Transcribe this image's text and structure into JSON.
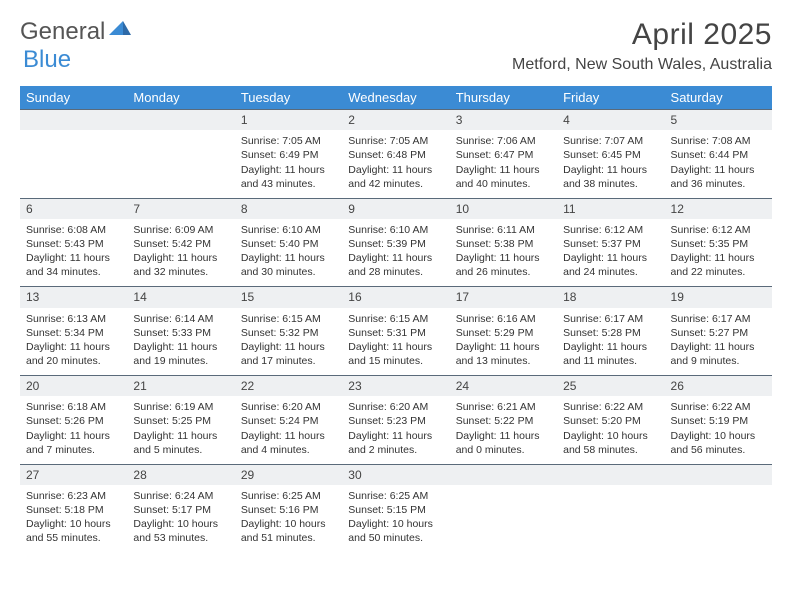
{
  "logo": {
    "word1": "General",
    "word2": "Blue"
  },
  "title": "April 2025",
  "location": "Metford, New South Wales, Australia",
  "dow": [
    "Sunday",
    "Monday",
    "Tuesday",
    "Wednesday",
    "Thursday",
    "Friday",
    "Saturday"
  ],
  "colors": {
    "header_bg": "#3b8bd4",
    "header_text": "#ffffff",
    "daynum_bg": "#eef0f2",
    "daynum_border": "#5a6a7a",
    "text": "#333333",
    "page_bg": "#ffffff"
  },
  "typography": {
    "title_fontsize": 30,
    "location_fontsize": 16,
    "dow_fontsize": 13,
    "daynum_fontsize": 12,
    "cell_fontsize": 10.5
  },
  "layout": {
    "columns": 7,
    "rows": 5,
    "col_width_pct": 14.28
  },
  "first_weekday_index": 2,
  "days": [
    {
      "n": 1,
      "sunrise": "7:05 AM",
      "sunset": "6:49 PM",
      "daylight": "11 hours and 43 minutes."
    },
    {
      "n": 2,
      "sunrise": "7:05 AM",
      "sunset": "6:48 PM",
      "daylight": "11 hours and 42 minutes."
    },
    {
      "n": 3,
      "sunrise": "7:06 AM",
      "sunset": "6:47 PM",
      "daylight": "11 hours and 40 minutes."
    },
    {
      "n": 4,
      "sunrise": "7:07 AM",
      "sunset": "6:45 PM",
      "daylight": "11 hours and 38 minutes."
    },
    {
      "n": 5,
      "sunrise": "7:08 AM",
      "sunset": "6:44 PM",
      "daylight": "11 hours and 36 minutes."
    },
    {
      "n": 6,
      "sunrise": "6:08 AM",
      "sunset": "5:43 PM",
      "daylight": "11 hours and 34 minutes."
    },
    {
      "n": 7,
      "sunrise": "6:09 AM",
      "sunset": "5:42 PM",
      "daylight": "11 hours and 32 minutes."
    },
    {
      "n": 8,
      "sunrise": "6:10 AM",
      "sunset": "5:40 PM",
      "daylight": "11 hours and 30 minutes."
    },
    {
      "n": 9,
      "sunrise": "6:10 AM",
      "sunset": "5:39 PM",
      "daylight": "11 hours and 28 minutes."
    },
    {
      "n": 10,
      "sunrise": "6:11 AM",
      "sunset": "5:38 PM",
      "daylight": "11 hours and 26 minutes."
    },
    {
      "n": 11,
      "sunrise": "6:12 AM",
      "sunset": "5:37 PM",
      "daylight": "11 hours and 24 minutes."
    },
    {
      "n": 12,
      "sunrise": "6:12 AM",
      "sunset": "5:35 PM",
      "daylight": "11 hours and 22 minutes."
    },
    {
      "n": 13,
      "sunrise": "6:13 AM",
      "sunset": "5:34 PM",
      "daylight": "11 hours and 20 minutes."
    },
    {
      "n": 14,
      "sunrise": "6:14 AM",
      "sunset": "5:33 PM",
      "daylight": "11 hours and 19 minutes."
    },
    {
      "n": 15,
      "sunrise": "6:15 AM",
      "sunset": "5:32 PM",
      "daylight": "11 hours and 17 minutes."
    },
    {
      "n": 16,
      "sunrise": "6:15 AM",
      "sunset": "5:31 PM",
      "daylight": "11 hours and 15 minutes."
    },
    {
      "n": 17,
      "sunrise": "6:16 AM",
      "sunset": "5:29 PM",
      "daylight": "11 hours and 13 minutes."
    },
    {
      "n": 18,
      "sunrise": "6:17 AM",
      "sunset": "5:28 PM",
      "daylight": "11 hours and 11 minutes."
    },
    {
      "n": 19,
      "sunrise": "6:17 AM",
      "sunset": "5:27 PM",
      "daylight": "11 hours and 9 minutes."
    },
    {
      "n": 20,
      "sunrise": "6:18 AM",
      "sunset": "5:26 PM",
      "daylight": "11 hours and 7 minutes."
    },
    {
      "n": 21,
      "sunrise": "6:19 AM",
      "sunset": "5:25 PM",
      "daylight": "11 hours and 5 minutes."
    },
    {
      "n": 22,
      "sunrise": "6:20 AM",
      "sunset": "5:24 PM",
      "daylight": "11 hours and 4 minutes."
    },
    {
      "n": 23,
      "sunrise": "6:20 AM",
      "sunset": "5:23 PM",
      "daylight": "11 hours and 2 minutes."
    },
    {
      "n": 24,
      "sunrise": "6:21 AM",
      "sunset": "5:22 PM",
      "daylight": "11 hours and 0 minutes."
    },
    {
      "n": 25,
      "sunrise": "6:22 AM",
      "sunset": "5:20 PM",
      "daylight": "10 hours and 58 minutes."
    },
    {
      "n": 26,
      "sunrise": "6:22 AM",
      "sunset": "5:19 PM",
      "daylight": "10 hours and 56 minutes."
    },
    {
      "n": 27,
      "sunrise": "6:23 AM",
      "sunset": "5:18 PM",
      "daylight": "10 hours and 55 minutes."
    },
    {
      "n": 28,
      "sunrise": "6:24 AM",
      "sunset": "5:17 PM",
      "daylight": "10 hours and 53 minutes."
    },
    {
      "n": 29,
      "sunrise": "6:25 AM",
      "sunset": "5:16 PM",
      "daylight": "10 hours and 51 minutes."
    },
    {
      "n": 30,
      "sunrise": "6:25 AM",
      "sunset": "5:15 PM",
      "daylight": "10 hours and 50 minutes."
    }
  ],
  "labels": {
    "sunrise": "Sunrise:",
    "sunset": "Sunset:",
    "daylight": "Daylight:"
  }
}
